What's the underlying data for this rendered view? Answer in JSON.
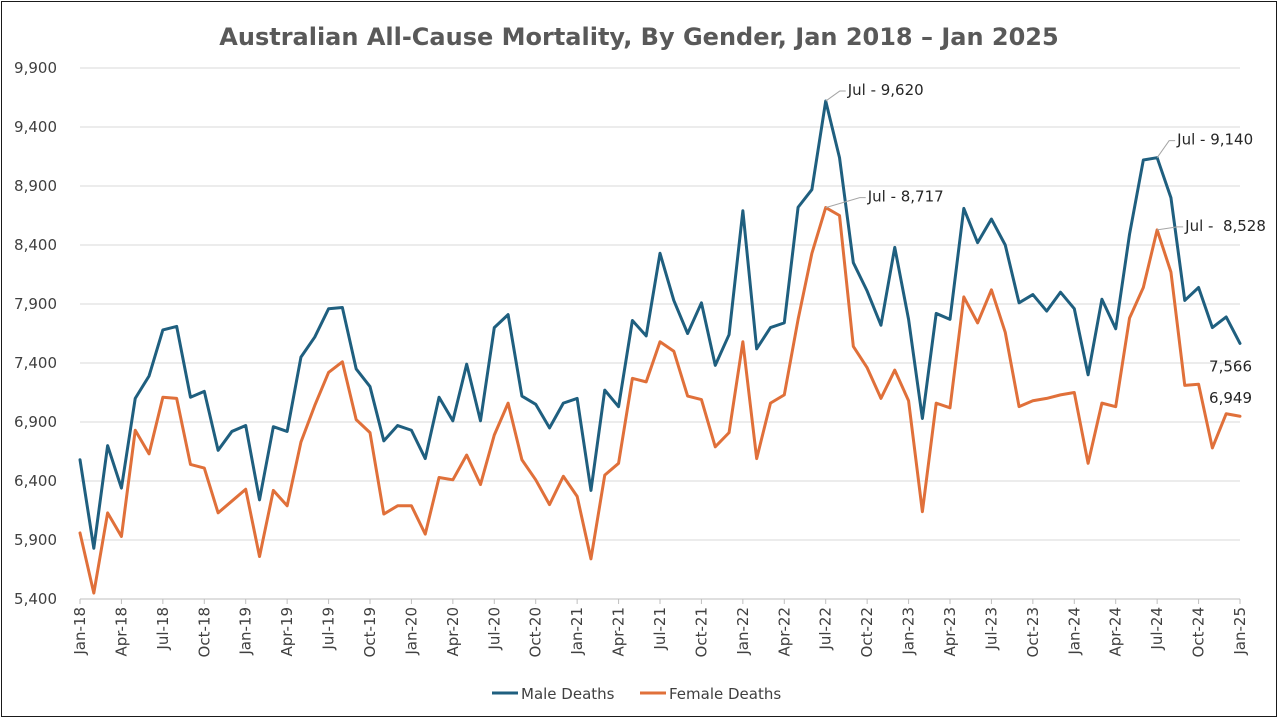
{
  "chart_data": {
    "type": "line",
    "title": "Australian All-Cause Mortality, By Gender, Jan 2018 – Jan 2025",
    "ylim": [
      5400,
      9900
    ],
    "yticks": [
      "5,400",
      "5,900",
      "6,400",
      "6,900",
      "7,400",
      "7,900",
      "8,400",
      "8,900",
      "9,400",
      "9,900"
    ],
    "grid": true,
    "legend_position": "bottom",
    "x": [
      "Jan-18",
      "Feb-18",
      "Mar-18",
      "Apr-18",
      "May-18",
      "Jun-18",
      "Jul-18",
      "Aug-18",
      "Sep-18",
      "Oct-18",
      "Nov-18",
      "Dec-18",
      "Jan-19",
      "Feb-19",
      "Mar-19",
      "Apr-19",
      "May-19",
      "Jun-19",
      "Jul-19",
      "Aug-19",
      "Sep-19",
      "Oct-19",
      "Nov-19",
      "Dec-19",
      "Jan-20",
      "Feb-20",
      "Mar-20",
      "Apr-20",
      "May-20",
      "Jun-20",
      "Jul-20",
      "Aug-20",
      "Sep-20",
      "Oct-20",
      "Nov-20",
      "Dec-20",
      "Jan-21",
      "Feb-21",
      "Mar-21",
      "Apr-21",
      "May-21",
      "Jun-21",
      "Jul-21",
      "Aug-21",
      "Sep-21",
      "Oct-21",
      "Nov-21",
      "Dec-21",
      "Jan-22",
      "Feb-22",
      "Mar-22",
      "Apr-22",
      "May-22",
      "Jun-22",
      "Jul-22",
      "Aug-22",
      "Sep-22",
      "Oct-22",
      "Nov-22",
      "Dec-22",
      "Jan-23",
      "Feb-23",
      "Mar-23",
      "Apr-23",
      "May-23",
      "Jun-23",
      "Jul-23",
      "Aug-23",
      "Sep-23",
      "Oct-23",
      "Nov-23",
      "Dec-23",
      "Jan-24",
      "Feb-24",
      "Mar-24",
      "Apr-24",
      "May-24",
      "Jun-24",
      "Jul-24",
      "Aug-24",
      "Sep-24",
      "Oct-24",
      "Nov-24",
      "Dec-24",
      "Jan-25"
    ],
    "xtick_labels": [
      "Jan-18",
      "Apr-18",
      "Jul-18",
      "Oct-18",
      "Jan-19",
      "Apr-19",
      "Jul-19",
      "Oct-19",
      "Jan-20",
      "Apr-20",
      "Jul-20",
      "Oct-20",
      "Jan-21",
      "Apr-21",
      "Jul-21",
      "Oct-21",
      "Jan-22",
      "Apr-22",
      "Jul-22",
      "Oct-22",
      "Jan-23",
      "Apr-23",
      "Jul-23",
      "Oct-23",
      "Jan-24",
      "Apr-24",
      "Jul-24",
      "Oct-24",
      "Jan-25"
    ],
    "series": [
      {
        "name": "Male Deaths",
        "color": "#1f5f7f",
        "values": [
          6580,
          5830,
          6700,
          6340,
          7100,
          7290,
          7680,
          7710,
          7110,
          7160,
          6660,
          6820,
          6870,
          6240,
          6860,
          6820,
          7450,
          7620,
          7860,
          7870,
          7350,
          7200,
          6740,
          6870,
          6830,
          6590,
          7110,
          6910,
          7390,
          6910,
          7700,
          7810,
          7120,
          7050,
          6850,
          7060,
          7100,
          6320,
          7170,
          7030,
          7760,
          7630,
          8330,
          7930,
          7650,
          7910,
          7380,
          7640,
          8690,
          7520,
          7700,
          7740,
          8720,
          8870,
          9620,
          9140,
          8250,
          8010,
          7720,
          8380,
          7770,
          6930,
          7820,
          7770,
          8710,
          8420,
          8620,
          8400,
          7910,
          7980,
          7840,
          8000,
          7860,
          7300,
          7940,
          7690,
          8490,
          9120,
          9140,
          8800,
          7930,
          8040,
          7700,
          7790,
          7566
        ]
      },
      {
        "name": "Female Deaths",
        "color": "#e0703a",
        "values": [
          5960,
          5450,
          6130,
          5930,
          6830,
          6630,
          7110,
          7100,
          6540,
          6510,
          6130,
          6230,
          6330,
          5760,
          6320,
          6190,
          6730,
          7040,
          7320,
          7410,
          6920,
          6810,
          6120,
          6190,
          6190,
          5950,
          6430,
          6410,
          6620,
          6370,
          6790,
          7060,
          6580,
          6410,
          6200,
          6440,
          6270,
          5740,
          6450,
          6550,
          7270,
          7240,
          7580,
          7500,
          7120,
          7090,
          6690,
          6810,
          7580,
          6590,
          7060,
          7130,
          7770,
          8330,
          8717,
          8650,
          7540,
          7360,
          7100,
          7340,
          7080,
          6140,
          7060,
          7020,
          7960,
          7740,
          8020,
          7660,
          7030,
          7080,
          7100,
          7130,
          7150,
          6550,
          7060,
          7030,
          7780,
          8040,
          8528,
          8170,
          7210,
          7220,
          6680,
          6970,
          6949
        ]
      }
    ],
    "annotations": [
      {
        "text": "Jul - 9,620",
        "series": 0,
        "index": 54
      },
      {
        "text": "Jul - 8,717",
        "series": 1,
        "index": 54
      },
      {
        "text": "Jul - 9,140",
        "series": 0,
        "index": 78
      },
      {
        "text": "Jul -  8,528",
        "series": 1,
        "index": 78
      },
      {
        "text": "7,566",
        "series": 0,
        "index": 84
      },
      {
        "text": "6,949",
        "series": 1,
        "index": 84
      }
    ]
  }
}
